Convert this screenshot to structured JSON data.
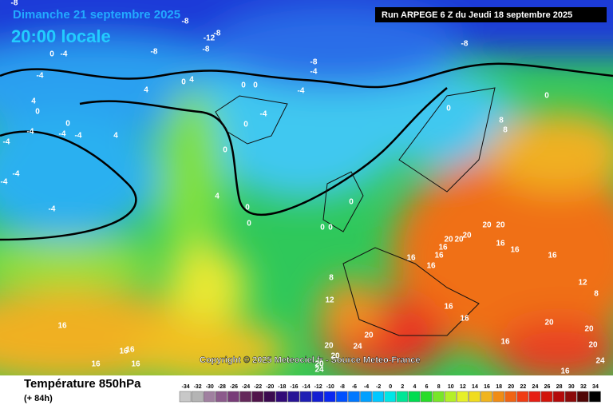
{
  "header": {
    "date": "Dimanche 21 septembre 2025",
    "time": "20:00 locale",
    "run": "Run ARPEGE 6 Z du Jeudi 18 septembre 2025"
  },
  "map": {
    "copyright": "Copyright © 2025 Meteociel.fr - Source Meteo-France",
    "contour_labels": [
      "-8",
      "-8",
      "-12",
      "-8",
      "-8",
      "-8",
      "0",
      "-4",
      "-4",
      "-8",
      "-4",
      "-8",
      "0",
      "4",
      "4",
      "0",
      "0",
      "-4",
      "0",
      "0",
      "8",
      "8",
      "-4",
      "0",
      "4",
      "0",
      "0",
      "-4",
      "-4",
      "4",
      "-4",
      "-4",
      "-4",
      "-4",
      "-4",
      "0",
      "4",
      "0",
      "0",
      "0",
      "0",
      "0",
      "20",
      "20",
      "20",
      "20",
      "20",
      "16",
      "16",
      "16",
      "16",
      "16",
      "16",
      "16",
      "12",
      "8",
      "8",
      "12",
      "16",
      "16",
      "16",
      "20",
      "20",
      "20",
      "20",
      "24",
      "20",
      "20",
      "24",
      "16",
      "20",
      "24",
      "16",
      "16",
      "16",
      "16",
      "16"
    ]
  },
  "footer": {
    "title": "Température 850hPa",
    "lead": "(+ 84h)"
  },
  "legend": {
    "labels": [
      "-34",
      "-32",
      "-30",
      "-28",
      "-26",
      "-24",
      "-22",
      "-20",
      "-18",
      "-16",
      "-14",
      "-12",
      "-10",
      "-8",
      "-6",
      "-4",
      "-2",
      "0",
      "2",
      "4",
      "6",
      "8",
      "10",
      "12",
      "14",
      "16",
      "18",
      "20",
      "22",
      "24",
      "26",
      "28",
      "30",
      "32",
      "34"
    ]
  }
}
